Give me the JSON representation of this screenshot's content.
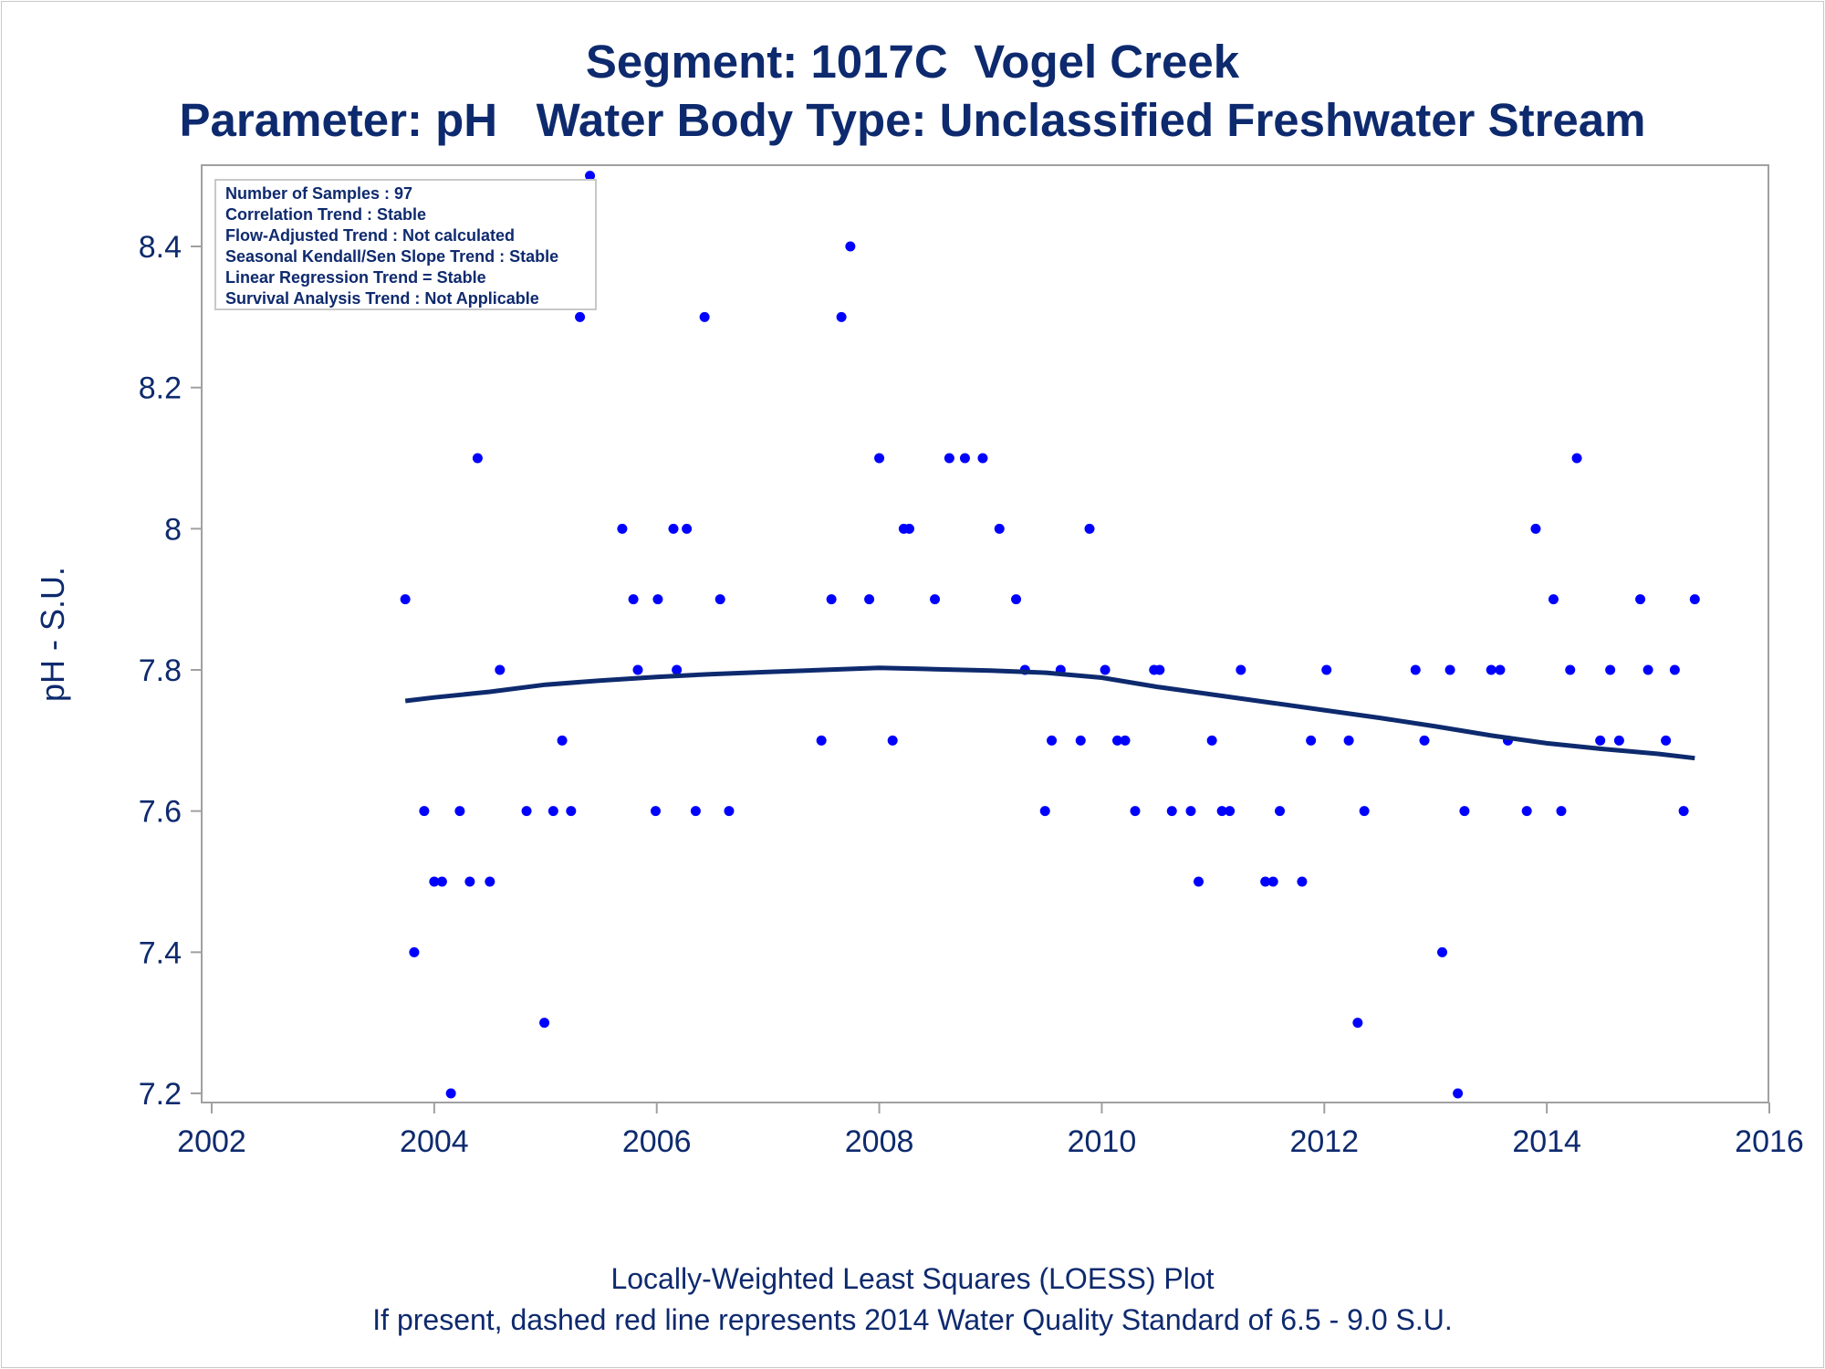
{
  "titles": [
    "Segment: 1017C  Vogel Creek",
    "Parameter: pH   Water Body Type: Unclassified Freshwater Stream"
  ],
  "footnotes": [
    "Locally-Weighted Least Squares (LOESS) Plot",
    "If present, dashed red line represents 2014 Water Quality Standard of 6.5 - 9.0 S.U."
  ],
  "colors": {
    "text": "#0e2a6e",
    "points": "#0000ff",
    "loess": "#0e2a6e",
    "frame": "#a0a0a0"
  },
  "chart_data": {
    "type": "scatter",
    "ylabel": "pH - S.U.",
    "xlabel": "",
    "xlim": [
      2002,
      2016
    ],
    "ylim": [
      7.2,
      8.5
    ],
    "xticks": [
      "2002",
      "2004",
      "2006",
      "2008",
      "2010",
      "2012",
      "2014",
      "2016"
    ],
    "yticks": [
      "7.2",
      "7.4",
      "7.6",
      "7.8",
      "8",
      "8.2",
      "8.4"
    ],
    "inset": [
      "Number of Samples : 97",
      "Correlation Trend : Stable",
      "Flow-Adjusted Trend : Not calculated",
      "Seasonal Kendall/Sen Slope Trend : Stable",
      "Linear Regression Trend = Stable",
      "Survival Analysis Trend : Not Applicable"
    ],
    "series": [
      {
        "kind": "points",
        "x": [
          2003.74,
          2003.82,
          2003.91,
          2004.0,
          2004.07,
          2004.15,
          2004.23,
          2004.32,
          2004.39,
          2004.5,
          2004.59,
          2004.83,
          2004.99,
          2005.07,
          2005.15,
          2005.23,
          2005.31,
          2005.4,
          2005.69,
          2005.79,
          2005.83,
          2005.99,
          2006.01,
          2006.15,
          2006.18,
          2006.27,
          2006.35,
          2006.43,
          2006.57,
          2006.65,
          2007.48,
          2007.57,
          2007.66,
          2007.74,
          2007.91,
          2008.0,
          2008.12,
          2008.22,
          2008.27,
          2008.5,
          2008.63,
          2008.77,
          2008.93,
          2009.08,
          2009.23,
          2009.31,
          2009.49,
          2009.55,
          2009.63,
          2009.81,
          2009.89,
          2010.03,
          2010.14,
          2010.21,
          2010.3,
          2010.47,
          2010.52,
          2010.63,
          2010.8,
          2010.87,
          2010.99,
          2011.08,
          2011.15,
          2011.25,
          2011.47,
          2011.54,
          2011.6,
          2011.8,
          2011.88,
          2012.02,
          2012.22,
          2012.3,
          2012.36,
          2012.82,
          2012.9,
          2013.06,
          2013.13,
          2013.2,
          2013.26,
          2013.5,
          2013.58,
          2013.65,
          2013.82,
          2013.9,
          2014.06,
          2014.13,
          2014.21,
          2014.27,
          2014.48,
          2014.57,
          2014.65,
          2014.84,
          2014.91,
          2015.07,
          2015.15,
          2015.23,
          2015.33
        ],
        "y": [
          7.9,
          7.4,
          7.6,
          7.5,
          7.5,
          7.2,
          7.6,
          7.5,
          8.1,
          7.5,
          7.8,
          7.6,
          7.3,
          7.6,
          7.7,
          7.6,
          8.3,
          8.5,
          8.0,
          7.9,
          7.8,
          7.6,
          7.9,
          8.0,
          7.8,
          8.0,
          7.6,
          8.3,
          7.9,
          7.6,
          7.7,
          7.9,
          8.3,
          8.4,
          7.9,
          8.1,
          7.7,
          8.0,
          8.0,
          7.9,
          8.1,
          8.1,
          8.1,
          8.0,
          7.9,
          7.8,
          7.6,
          7.7,
          7.8,
          7.7,
          8.0,
          7.8,
          7.7,
          7.7,
          7.6,
          7.8,
          7.8,
          7.6,
          7.6,
          7.5,
          7.7,
          7.6,
          7.6,
          7.8,
          7.5,
          7.5,
          7.6,
          7.5,
          7.7,
          7.8,
          7.7,
          7.3,
          7.6,
          7.8,
          7.7,
          7.4,
          7.8,
          7.2,
          7.6,
          7.8,
          7.8,
          7.7,
          7.6,
          8.0,
          7.9,
          7.6,
          7.8,
          8.1,
          7.7,
          7.8,
          7.7,
          7.9,
          7.8,
          7.7,
          7.8,
          7.6,
          7.9
        ]
      },
      {
        "kind": "loess",
        "x": [
          2003.74,
          2004.0,
          2004.5,
          2005.0,
          2005.5,
          2006.0,
          2006.5,
          2007.0,
          2007.5,
          2008.0,
          2008.5,
          2009.0,
          2009.5,
          2010.0,
          2010.5,
          2011.0,
          2011.5,
          2012.0,
          2012.5,
          2013.0,
          2013.5,
          2014.0,
          2014.5,
          2015.0,
          2015.33
        ],
        "y": [
          7.756,
          7.761,
          7.769,
          7.779,
          7.785,
          7.79,
          7.794,
          7.797,
          7.8,
          7.803,
          7.801,
          7.799,
          7.796,
          7.789,
          7.776,
          7.765,
          7.754,
          7.743,
          7.732,
          7.72,
          7.707,
          7.696,
          7.688,
          7.681,
          7.675
        ]
      }
    ]
  }
}
